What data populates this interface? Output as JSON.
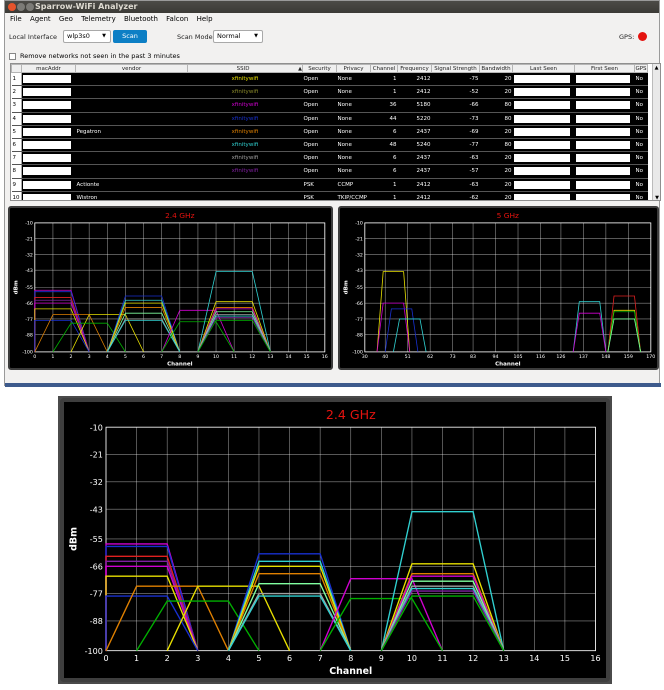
{
  "app": {
    "title": "Sparrow-WiFi Analyzer",
    "menu": [
      "File",
      "Agent",
      "Geo",
      "Telemetry",
      "Bluetooth",
      "Falcon",
      "Help"
    ]
  },
  "toolbar": {
    "interface_label": "Local Interface",
    "interface_value": "wlp3s0",
    "scan_label": "Scan",
    "scan_mode_label": "Scan Mode:",
    "scan_mode_value": "Normal",
    "gps_label": "GPS:"
  },
  "filter": {
    "remove_label": "Remove networks not seen in the past 3 minutes"
  },
  "colors": {
    "gps_status": "#e4130f",
    "scan_button": "#0d7fc5",
    "chart_title": "#e4130f"
  },
  "table": {
    "columns": [
      "macAddr",
      "vendor",
      "SSID",
      "Security",
      "Privacy",
      "Channel",
      "Frequency",
      "Signal Strength",
      "Bandwidth",
      "Last Seen",
      "First Seen",
      "GPS"
    ],
    "rows": [
      {
        "idx": "1",
        "vendor": "",
        "ssid": "xfinitywifi",
        "ssid_color": "#e8e000",
        "security": "Open",
        "privacy": "None",
        "channel": "1",
        "frequency": "2412",
        "signal": "-75",
        "bandwidth": "20",
        "gps": "No"
      },
      {
        "idx": "2",
        "vendor": "",
        "ssid": "xfinitywifi",
        "ssid_color": "#8a8a2a",
        "security": "Open",
        "privacy": "None",
        "channel": "1",
        "frequency": "2412",
        "signal": "-52",
        "bandwidth": "20",
        "gps": "No"
      },
      {
        "idx": "3",
        "vendor": "",
        "ssid": "xfinitywifi",
        "ssid_color": "#d000d0",
        "security": "Open",
        "privacy": "None",
        "channel": "36",
        "frequency": "5180",
        "signal": "-66",
        "bandwidth": "80",
        "gps": "No"
      },
      {
        "idx": "4",
        "vendor": "",
        "ssid": "xfinitywifi",
        "ssid_color": "#1830d0",
        "security": "Open",
        "privacy": "None",
        "channel": "44",
        "frequency": "5220",
        "signal": "-73",
        "bandwidth": "80",
        "gps": "No"
      },
      {
        "idx": "5",
        "vendor": "Pegatron",
        "ssid": "xfinitywifi",
        "ssid_color": "#e08000",
        "security": "Open",
        "privacy": "None",
        "channel": "6",
        "frequency": "2437",
        "signal": "-69",
        "bandwidth": "20",
        "gps": "No"
      },
      {
        "idx": "6",
        "vendor": "",
        "ssid": "xfinitywifi",
        "ssid_color": "#30d0d0",
        "security": "Open",
        "privacy": "None",
        "channel": "48",
        "frequency": "5240",
        "signal": "-77",
        "bandwidth": "80",
        "gps": "No"
      },
      {
        "idx": "7",
        "vendor": "",
        "ssid": "xfinitywifi",
        "ssid_color": "#a0a0a0",
        "security": "Open",
        "privacy": "None",
        "channel": "6",
        "frequency": "2437",
        "signal": "-63",
        "bandwidth": "20",
        "gps": "No"
      },
      {
        "idx": "8",
        "vendor": "",
        "ssid": "xfinitywifi",
        "ssid_color": "#8020a0",
        "security": "Open",
        "privacy": "None",
        "channel": "6",
        "frequency": "2437",
        "signal": "-57",
        "bandwidth": "20",
        "gps": "No"
      },
      {
        "idx": "9",
        "vendor": "Actionte",
        "ssid": "",
        "ssid_color": "#1830d0",
        "security": "PSK",
        "privacy": "CCMP",
        "channel": "1",
        "frequency": "2412",
        "signal": "-63",
        "bandwidth": "20",
        "gps": "No"
      },
      {
        "idx": "10",
        "vendor": "Wistron",
        "ssid": "",
        "ssid_color": "#e02020",
        "security": "PSK",
        "privacy": "TKIP/CCMP",
        "channel": "1",
        "frequency": "2412",
        "signal": "-62",
        "bandwidth": "20",
        "gps": "No"
      }
    ]
  },
  "chart_data": [
    {
      "type": "line",
      "title": "2.4 GHz",
      "xlabel": "Channel",
      "ylabel": "dBm",
      "xlim": [
        0,
        16
      ],
      "ylim": [
        -100,
        -10
      ],
      "xticks": [
        0,
        1,
        2,
        3,
        4,
        5,
        6,
        7,
        8,
        9,
        10,
        11,
        12,
        13,
        14,
        15,
        16
      ],
      "yticks": [
        -10,
        -21,
        -32,
        -43,
        -55,
        -66,
        -77,
        -88,
        -100
      ],
      "grid": true,
      "series": [
        {
          "color": "#d000d0",
          "channel": 1,
          "dbm": -57
        },
        {
          "color": "#1830d0",
          "channel": 1,
          "dbm": -58
        },
        {
          "color": "#e02020",
          "channel": 1,
          "dbm": -62
        },
        {
          "color": "#8020a0",
          "channel": 1,
          "dbm": -64
        },
        {
          "color": "#d000d0",
          "channel": 1,
          "dbm": -66
        },
        {
          "color": "#e8e000",
          "channel": 1,
          "dbm": -70
        },
        {
          "color": "#1830d0",
          "channel": 1,
          "dbm": -78
        },
        {
          "color": "#e08000",
          "channel": 2,
          "dbm": -74
        },
        {
          "color": "#e8e000",
          "channel": 4,
          "dbm": -74
        },
        {
          "color": "#00b000",
          "channel": 3,
          "dbm": -80
        },
        {
          "color": "#1830d0",
          "channel": 6,
          "dbm": -61
        },
        {
          "color": "#30d0d0",
          "channel": 6,
          "dbm": -64
        },
        {
          "color": "#e8e000",
          "channel": 6,
          "dbm": -66
        },
        {
          "color": "#e08000",
          "channel": 6,
          "dbm": -69
        },
        {
          "color": "#80ffa0",
          "channel": 6,
          "dbm": -73
        },
        {
          "color": "#a0a0a0",
          "channel": 6,
          "dbm": -77
        },
        {
          "color": "#30d0d0",
          "channel": 6,
          "dbm": -78
        },
        {
          "color": "#d000d0",
          "channel": 9,
          "dbm": -71
        },
        {
          "color": "#00b000",
          "channel": 9,
          "dbm": -79
        },
        {
          "color": "#30d0d0",
          "channel": 11,
          "dbm": -44
        },
        {
          "color": "#e8e000",
          "channel": 11,
          "dbm": -65
        },
        {
          "color": "#e08000",
          "channel": 11,
          "dbm": -69
        },
        {
          "color": "#d000d0",
          "channel": 11,
          "dbm": -70
        },
        {
          "color": "#80ffa0",
          "channel": 11,
          "dbm": -72
        },
        {
          "color": "#a0a0a0",
          "channel": 11,
          "dbm": -74
        },
        {
          "color": "#30d0d0",
          "channel": 11,
          "dbm": -75
        },
        {
          "color": "#8020a0",
          "channel": 11,
          "dbm": -76
        },
        {
          "color": "#00b000",
          "channel": 11,
          "dbm": -78
        }
      ]
    },
    {
      "type": "line",
      "title": "5 GHz",
      "xlabel": "Channel",
      "ylabel": "dBm",
      "xlim": [
        30,
        170
      ],
      "ylim": [
        -100,
        -10
      ],
      "xticks": [
        30,
        40,
        51,
        62,
        73,
        83,
        94,
        105,
        116,
        126,
        137,
        148,
        159,
        170
      ],
      "yticks": [
        -10,
        -21,
        -32,
        -43,
        -55,
        -66,
        -77,
        -88,
        -100
      ],
      "grid": true,
      "series": [
        {
          "color": "#e8e000",
          "channel": 44,
          "dbm": -44
        },
        {
          "color": "#d000d0",
          "channel": 44,
          "dbm": -66
        },
        {
          "color": "#1830d0",
          "channel": 48,
          "dbm": -70
        },
        {
          "color": "#30d0d0",
          "channel": 52,
          "dbm": -77
        },
        {
          "color": "#30d0d0",
          "channel": 140,
          "dbm": -65
        },
        {
          "color": "#d000d0",
          "channel": 140,
          "dbm": -73
        },
        {
          "color": "#e02020",
          "channel": 157,
          "dbm": -61
        },
        {
          "color": "#e8e000",
          "channel": 157,
          "dbm": -71
        },
        {
          "color": "#00b000",
          "channel": 157,
          "dbm": -72
        },
        {
          "color": "#80ffa0",
          "channel": 157,
          "dbm": -77
        }
      ]
    }
  ]
}
